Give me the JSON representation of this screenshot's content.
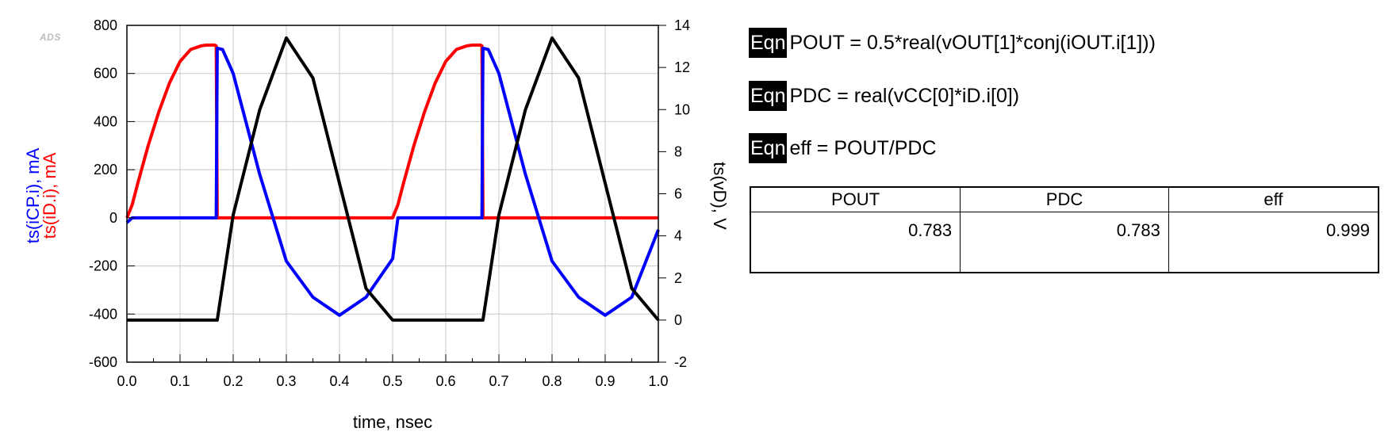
{
  "app": {
    "logo": "ADS"
  },
  "equations": [
    {
      "tag": "Eqn",
      "text": "POUT = 0.5*real(vOUT[1]*conj(iOUT.i[1]))"
    },
    {
      "tag": "Eqn",
      "text": "PDC = real(vCC[0]*iD.i[0])"
    },
    {
      "tag": "Eqn",
      "text": "eff = POUT/PDC"
    }
  ],
  "table": {
    "headers": [
      "POUT",
      "PDC",
      "eff"
    ],
    "rows": [
      [
        "0.783",
        "0.783",
        "0.999"
      ]
    ]
  },
  "chart_data": {
    "type": "line",
    "xlabel": "time, nsec",
    "xlim": [
      0.0,
      1.0
    ],
    "xticks": [
      "0.0",
      "0.1",
      "0.2",
      "0.3",
      "0.4",
      "0.5",
      "0.6",
      "0.7",
      "0.8",
      "0.9",
      "1.0"
    ],
    "ylabel_left": [
      {
        "text": "ts(iCP.i), mA",
        "color": "#0000ff"
      },
      {
        "text": "ts(iD.i), mA",
        "color": "#ff0000"
      }
    ],
    "ylim_left": [
      -600,
      800
    ],
    "yticks_left": [
      "-600",
      "-400",
      "-200",
      "0",
      "200",
      "400",
      "600",
      "800"
    ],
    "ylabel_right": "ts(vD), V",
    "ylim_right": [
      -2,
      14
    ],
    "yticks_right": [
      "-2",
      "0",
      "2",
      "4",
      "6",
      "8",
      "10",
      "12",
      "14"
    ],
    "grid": true,
    "series": [
      {
        "name": "ts(iD.i)",
        "axis": "left",
        "color": "#ff0000",
        "x": [
          0.0,
          0.01,
          0.02,
          0.04,
          0.06,
          0.08,
          0.1,
          0.12,
          0.14,
          0.15,
          0.165,
          0.168,
          0.17,
          0.2,
          0.3,
          0.4,
          0.5,
          0.51,
          0.52,
          0.54,
          0.56,
          0.58,
          0.6,
          0.62,
          0.64,
          0.65,
          0.665,
          0.668,
          0.67,
          0.7,
          0.8,
          0.9,
          1.0
        ],
        "y": [
          0,
          55,
          140,
          300,
          440,
          560,
          650,
          700,
          715,
          718,
          718,
          715,
          0,
          0,
          0,
          0,
          0,
          55,
          140,
          300,
          440,
          560,
          650,
          700,
          715,
          718,
          718,
          715,
          0,
          0,
          0,
          0,
          0
        ]
      },
      {
        "name": "ts(iCP.i)",
        "axis": "left",
        "color": "#0000ff",
        "x": [
          0.0,
          0.01,
          0.1,
          0.168,
          0.17,
          0.18,
          0.2,
          0.25,
          0.3,
          0.35,
          0.4,
          0.45,
          0.5,
          0.51,
          0.6,
          0.668,
          0.67,
          0.68,
          0.7,
          0.75,
          0.8,
          0.85,
          0.9,
          0.95,
          1.0
        ],
        "y": [
          -20,
          0,
          0,
          0,
          705,
          700,
          600,
          180,
          -180,
          -330,
          -405,
          -330,
          -170,
          0,
          0,
          0,
          705,
          700,
          600,
          180,
          -180,
          -330,
          -405,
          -330,
          -50
        ]
      },
      {
        "name": "ts(vD)",
        "axis": "right",
        "color": "#000000",
        "x": [
          0.0,
          0.05,
          0.1,
          0.17,
          0.2,
          0.25,
          0.3,
          0.35,
          0.4,
          0.45,
          0.5,
          0.55,
          0.6,
          0.67,
          0.7,
          0.75,
          0.8,
          0.85,
          0.9,
          0.95,
          1.0
        ],
        "y": [
          0,
          0,
          0,
          0,
          5,
          10,
          13.4,
          11.5,
          6.5,
          1.5,
          0,
          0,
          0,
          0,
          5,
          10,
          13.4,
          11.5,
          6.5,
          1.5,
          0
        ]
      }
    ]
  }
}
